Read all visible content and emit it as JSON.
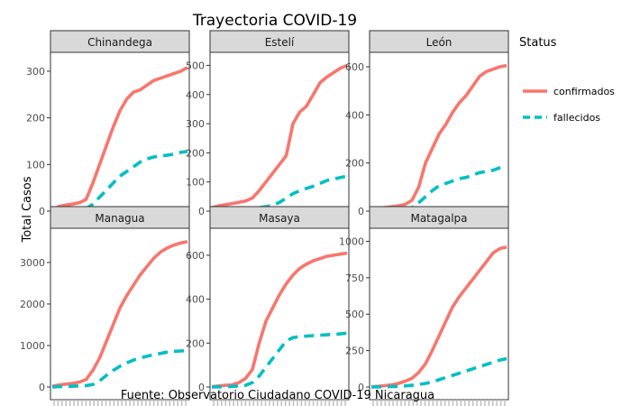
{
  "chart_data": {
    "type": "line",
    "title": "Trayectoria COVID-19",
    "ylabel": "Total Casos",
    "caption": "Fuente: Observatorio Ciudadano COVID-19 Nicaragua",
    "legend": {
      "title": "Status",
      "placement": "right",
      "entries": [
        {
          "name": "confirmados",
          "color": "#F8766D",
          "dash": "solid"
        },
        {
          "name": "fallecidos",
          "color": "#00BFC4",
          "dash": "dashed"
        }
      ]
    },
    "x_steps": 21,
    "panels": [
      {
        "name": "Chinandega",
        "ylim": [
          0,
          325
        ],
        "yticks": [
          0,
          100,
          200,
          300
        ],
        "series": [
          {
            "name": "confirmados",
            "values": [
              2,
              10,
              13,
              15,
              18,
              25,
              60,
              100,
              140,
              180,
              215,
              240,
              255,
              260,
              270,
              280,
              285,
              290,
              295,
              300,
              308
            ]
          },
          {
            "name": "fallecidos",
            "values": [
              0,
              2,
              3,
              4,
              4,
              5,
              15,
              30,
              45,
              60,
              75,
              85,
              95,
              105,
              112,
              116,
              118,
              120,
              122,
              126,
              128
            ]
          }
        ]
      },
      {
        "name": "Estelí",
        "ylim": [
          0,
          520
        ],
        "yticks": [
          0,
          100,
          200,
          300,
          400,
          500
        ],
        "series": [
          {
            "name": "confirmados",
            "values": [
              12,
              18,
              22,
              26,
              30,
              35,
              45,
              70,
              100,
              130,
              160,
              190,
              300,
              340,
              360,
              400,
              440,
              460,
              475,
              490,
              500
            ]
          },
          {
            "name": "fallecidos",
            "values": [
              0,
              1,
              2,
              3,
              3,
              5,
              8,
              12,
              15,
              20,
              30,
              45,
              60,
              70,
              78,
              85,
              95,
              105,
              110,
              115,
              120
            ]
          }
        ]
      },
      {
        "name": "León",
        "ylim": [
          0,
          630
        ],
        "yticks": [
          0,
          200,
          400,
          600
        ],
        "series": [
          {
            "name": "confirmados",
            "values": [
              5,
              12,
              15,
              18,
              22,
              28,
              45,
              100,
              200,
              260,
              320,
              360,
              410,
              450,
              480,
              520,
              560,
              580,
              590,
              600,
              605
            ]
          },
          {
            "name": "fallecidos",
            "values": [
              0,
              2,
              4,
              6,
              8,
              10,
              15,
              35,
              60,
              85,
              105,
              115,
              125,
              135,
              140,
              150,
              160,
              165,
              170,
              180,
              185
            ]
          }
        ]
      },
      {
        "name": "Managua",
        "ylim": [
          0,
          3650
        ],
        "yticks": [
          0,
          1000,
          2000,
          3000
        ],
        "series": [
          {
            "name": "confirmados",
            "values": [
              20,
              50,
              70,
              90,
              120,
              180,
              400,
              700,
              1100,
              1500,
              1900,
              2200,
              2450,
              2700,
              2900,
              3100,
              3250,
              3350,
              3420,
              3470,
              3500
            ]
          },
          {
            "name": "fallecidos",
            "values": [
              0,
              10,
              15,
              20,
              25,
              35,
              60,
              150,
              280,
              400,
              500,
              580,
              650,
              700,
              740,
              780,
              810,
              840,
              860,
              870,
              880
            ]
          }
        ]
      },
      {
        "name": "Masaya",
        "ylim": [
          0,
          690
        ],
        "yticks": [
          0,
          200,
          400,
          600
        ],
        "series": [
          {
            "name": "confirmados",
            "values": [
              2,
              5,
              8,
              10,
              20,
              40,
              80,
              200,
              300,
              360,
              420,
              470,
              510,
              540,
              560,
              575,
              585,
              595,
              600,
              605,
              610
            ]
          },
          {
            "name": "fallecidos",
            "values": [
              0,
              1,
              2,
              3,
              5,
              8,
              20,
              50,
              90,
              130,
              170,
              210,
              225,
              230,
              232,
              234,
              236,
              238,
              240,
              242,
              245
            ]
          }
        ]
      },
      {
        "name": "Matagalpa",
        "ylim": [
          0,
          1040
        ],
        "yticks": [
          0,
          250,
          500,
          750,
          1000
        ],
        "series": [
          {
            "name": "confirmados",
            "values": [
              2,
              5,
              10,
              15,
              25,
              40,
              60,
              100,
              160,
              250,
              350,
              450,
              550,
              620,
              680,
              740,
              800,
              860,
              920,
              950,
              960
            ]
          },
          {
            "name": "fallecidos",
            "values": [
              0,
              1,
              2,
              3,
              5,
              8,
              12,
              18,
              25,
              35,
              50,
              65,
              80,
              95,
              110,
              125,
              140,
              155,
              170,
              185,
              195
            ]
          }
        ]
      }
    ]
  }
}
